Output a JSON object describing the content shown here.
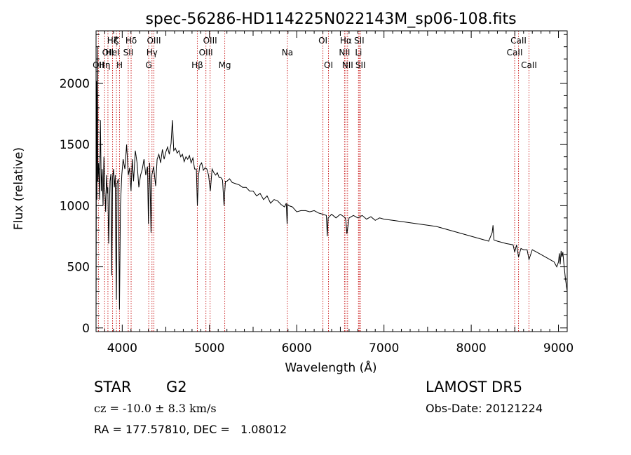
{
  "chart_data": {
    "type": "line",
    "title": "spec-56286-HD114225N022143M_sp06-108.fits",
    "xlabel": "Wavelength (Å)",
    "ylabel": "Flux (relative)",
    "xlim": [
      3700,
      9100
    ],
    "ylim": [
      -30,
      2430
    ],
    "xticks": [
      4000,
      5000,
      6000,
      7000,
      8000,
      9000
    ],
    "yticks": [
      0,
      500,
      1000,
      1500,
      2000
    ],
    "grid": false,
    "line_color": "#000000",
    "marker_color": "#cc2222",
    "series": [
      {
        "x": [
          3700,
          3705,
          3710,
          3715,
          3720,
          3730,
          3740,
          3750,
          3760,
          3770,
          3780,
          3790,
          3800,
          3810,
          3820,
          3830,
          3835,
          3845,
          3860,
          3870,
          3880,
          3890,
          3900,
          3910,
          3920,
          3925,
          3933,
          3940,
          3955,
          3968,
          3980,
          3995,
          4010,
          4030,
          4050,
          4070,
          4085,
          4101,
          4115,
          4130,
          4150,
          4170,
          4190,
          4210,
          4230,
          4250,
          4270,
          4290,
          4300,
          4305,
          4315,
          4330,
          4340,
          4360,
          4383,
          4400,
          4420,
          4440,
          4460,
          4480,
          4500,
          4520,
          4540,
          4560,
          4575,
          4590,
          4610,
          4630,
          4650,
          4670,
          4690,
          4710,
          4730,
          4750,
          4770,
          4790,
          4810,
          4830,
          4850,
          4861,
          4875,
          4890,
          4910,
          4930,
          4950,
          4970,
          4990,
          5010,
          5030,
          5050,
          5070,
          5090,
          5110,
          5130,
          5150,
          5167,
          5172,
          5183,
          5200,
          5230,
          5260,
          5300,
          5340,
          5380,
          5420,
          5460,
          5500,
          5540,
          5580,
          5620,
          5660,
          5700,
          5740,
          5780,
          5820,
          5860,
          5880,
          5890,
          5896,
          5910,
          5950,
          6000,
          6050,
          6100,
          6150,
          6200,
          6250,
          6300,
          6340,
          6350,
          6360,
          6400,
          6450,
          6500,
          6540,
          6555,
          6563,
          6575,
          6600,
          6650,
          6700,
          6750,
          6800,
          6850,
          6900,
          6950,
          7000,
          7100,
          7200,
          7300,
          7400,
          7500,
          7600,
          7700,
          7800,
          7900,
          8000,
          8100,
          8200,
          8240,
          8250,
          8260,
          8300,
          8400,
          8480,
          8498,
          8520,
          8542,
          8570,
          8600,
          8640,
          8662,
          8700,
          8750,
          8800,
          8850,
          8900,
          8950,
          8980,
          9000,
          9010,
          9020,
          9030,
          9040,
          9050,
          9060,
          9080,
          9100
        ],
        "y": [
          0,
          2020,
          1050,
          2300,
          1200,
          1350,
          1050,
          1700,
          1120,
          1300,
          1000,
          1400,
          1150,
          950,
          1250,
          1100,
          1150,
          690,
          1200,
          1260,
          430,
          1230,
          1300,
          1150,
          1250,
          720,
          230,
          1180,
          1220,
          150,
          1000,
          1250,
          1380,
          1300,
          1500,
          1250,
          1310,
          1120,
          1380,
          1200,
          1450,
          1350,
          1150,
          1250,
          1300,
          1380,
          1250,
          1320,
          850,
          1100,
          1350,
          780,
          1250,
          1320,
          1160,
          1380,
          1420,
          1350,
          1460,
          1380,
          1440,
          1480,
          1420,
          1510,
          1700,
          1450,
          1470,
          1430,
          1450,
          1400,
          1420,
          1360,
          1400,
          1380,
          1410,
          1350,
          1390,
          1300,
          1300,
          1000,
          1250,
          1330,
          1350,
          1290,
          1310,
          1300,
          1250,
          1120,
          1300,
          1270,
          1250,
          1270,
          1230,
          1230,
          1210,
          1000,
          1080,
          1200,
          1200,
          1220,
          1190,
          1180,
          1170,
          1150,
          1150,
          1120,
          1120,
          1080,
          1100,
          1050,
          1080,
          1020,
          1050,
          1040,
          1010,
          990,
          1020,
          850,
          1010,
          1000,
          990,
          950,
          960,
          960,
          950,
          960,
          940,
          930,
          920,
          750,
          900,
          930,
          900,
          930,
          910,
          900,
          880,
          770,
          900,
          920,
          900,
          920,
          890,
          910,
          880,
          900,
          890,
          880,
          870,
          860,
          850,
          840,
          830,
          810,
          790,
          770,
          750,
          730,
          710,
          780,
          840,
          720,
          710,
          690,
          680,
          620,
          680,
          580,
          650,
          640,
          640,
          560,
          640,
          620,
          600,
          580,
          560,
          540,
          500,
          540,
          610,
          520,
          630,
          580,
          620,
          540,
          400,
          300
        ]
      }
    ],
    "lines": [
      {
        "x": 3727,
        "label": "OII",
        "row": 2
      },
      {
        "x": 3798,
        "label": "Hη",
        "row": 2
      },
      {
        "x": 3836,
        "label": "OII",
        "row": 1
      },
      {
        "x": 3889,
        "label": "Hζ",
        "row": 0
      },
      {
        "x": 3889,
        "label": "HeI",
        "row": 1
      },
      {
        "x": 3934,
        "label": "K",
        "row": 0
      },
      {
        "x": 3969,
        "label": "H",
        "row": 2
      },
      {
        "x": 4069,
        "label": "SII",
        "row": 1
      },
      {
        "x": 4102,
        "label": "Hδ",
        "row": 0
      },
      {
        "x": 4304,
        "label": "G",
        "row": 2
      },
      {
        "x": 4341,
        "label": "Hγ",
        "row": 1
      },
      {
        "x": 4363,
        "label": "OIII",
        "row": 0
      },
      {
        "x": 4861,
        "label": "Hβ",
        "row": 2
      },
      {
        "x": 4959,
        "label": "OIII",
        "row": 1
      },
      {
        "x": 5007,
        "label": "OIII",
        "row": 0
      },
      {
        "x": 5175,
        "label": "Mg",
        "row": 2
      },
      {
        "x": 5893,
        "label": "Na",
        "row": 1
      },
      {
        "x": 6300,
        "label": "OI",
        "row": 0
      },
      {
        "x": 6364,
        "label": "OI",
        "row": 2
      },
      {
        "x": 6548,
        "label": "NII",
        "row": 1
      },
      {
        "x": 6563,
        "label": "Hα",
        "row": 0
      },
      {
        "x": 6583,
        "label": "NII",
        "row": 2
      },
      {
        "x": 6708,
        "label": "Li",
        "row": 1
      },
      {
        "x": 6716,
        "label": "SII",
        "row": 0
      },
      {
        "x": 6731,
        "label": "SII",
        "row": 2
      },
      {
        "x": 8498,
        "label": "CaII",
        "row": 1
      },
      {
        "x": 8542,
        "label": "CaII",
        "row": 0
      },
      {
        "x": 8662,
        "label": "CaII",
        "row": 2
      }
    ]
  },
  "info": {
    "object_class": "STAR",
    "subclass": "G2",
    "redshift": "cz = -10.0 ± 8.3 km/s",
    "coords": "RA = 177.57810, DEC =   1.08012",
    "survey": "LAMOST DR5",
    "obs_date": "Obs-Date: 20121224"
  }
}
